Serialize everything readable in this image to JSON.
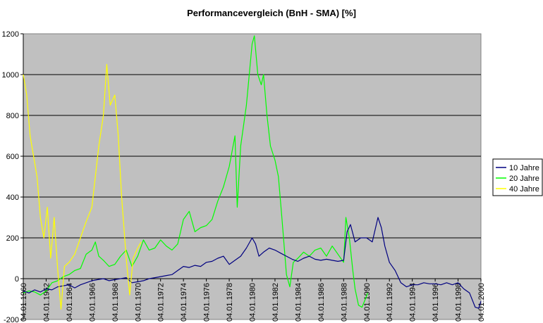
{
  "chart_data": {
    "type": "line",
    "title": "Performancevergleich (BnH - SMA) [%]",
    "xlabel": "",
    "ylabel": "",
    "ylim": [
      -200,
      1200
    ],
    "y_ticks": [
      -200,
      0,
      200,
      400,
      600,
      800,
      1000,
      1200
    ],
    "x_range": [
      1960.0,
      2000.0
    ],
    "x_ticks": [
      {
        "year": 1960,
        "label": "04.01.1960"
      },
      {
        "year": 1962,
        "label": "04.01.1962"
      },
      {
        "year": 1964,
        "label": "04.01.1964"
      },
      {
        "year": 1966,
        "label": "04.01.1966"
      },
      {
        "year": 1968,
        "label": "04.01.1968"
      },
      {
        "year": 1970,
        "label": "04.01.1970"
      },
      {
        "year": 1972,
        "label": "04.01.1972"
      },
      {
        "year": 1974,
        "label": "04.01.1974"
      },
      {
        "year": 1976,
        "label": "04.01.1976"
      },
      {
        "year": 1978,
        "label": "04.01.1978"
      },
      {
        "year": 1980,
        "label": "04.01.1980"
      },
      {
        "year": 1982,
        "label": "04.01.1982"
      },
      {
        "year": 1984,
        "label": "04.01.1984"
      },
      {
        "year": 1986,
        "label": "04.01.1986"
      },
      {
        "year": 1988,
        "label": "04.01.1988"
      },
      {
        "year": 1990,
        "label": "04.01.1990"
      },
      {
        "year": 1992,
        "label": "04.01.1992"
      },
      {
        "year": 1994,
        "label": "04.01.1994"
      },
      {
        "year": 1996,
        "label": "04.01.1996"
      },
      {
        "year": 1998,
        "label": "04.01.1998"
      },
      {
        "year": 2000,
        "label": "04.01.2000"
      }
    ],
    "grid": "horizontal",
    "plot_background": "#c0c0c0",
    "legend_position": "right",
    "series": [
      {
        "name": "10 Jahre",
        "color": "#000080",
        "points": [
          [
            1960.0,
            -60
          ],
          [
            1960.5,
            -70
          ],
          [
            1961.0,
            -55
          ],
          [
            1961.5,
            -65
          ],
          [
            1962.0,
            -50
          ],
          [
            1962.5,
            -55
          ],
          [
            1963.0,
            -40
          ],
          [
            1963.5,
            -35
          ],
          [
            1964.0,
            -30
          ],
          [
            1964.5,
            -45
          ],
          [
            1965.0,
            -30
          ],
          [
            1965.5,
            -20
          ],
          [
            1966.0,
            -10
          ],
          [
            1966.5,
            -5
          ],
          [
            1967.0,
            0
          ],
          [
            1967.5,
            -10
          ],
          [
            1968.0,
            -5
          ],
          [
            1968.5,
            0
          ],
          [
            1969.0,
            5
          ],
          [
            1969.5,
            -20
          ],
          [
            1970.0,
            -15
          ],
          [
            1970.5,
            -10
          ],
          [
            1971.0,
            0
          ],
          [
            1971.5,
            5
          ],
          [
            1972.0,
            10
          ],
          [
            1972.5,
            15
          ],
          [
            1973.0,
            20
          ],
          [
            1973.5,
            40
          ],
          [
            1974.0,
            60
          ],
          [
            1974.5,
            55
          ],
          [
            1975.0,
            65
          ],
          [
            1975.5,
            60
          ],
          [
            1976.0,
            80
          ],
          [
            1976.5,
            85
          ],
          [
            1977.0,
            100
          ],
          [
            1977.5,
            110
          ],
          [
            1978.0,
            70
          ],
          [
            1978.5,
            90
          ],
          [
            1979.0,
            110
          ],
          [
            1979.5,
            150
          ],
          [
            1980.0,
            200
          ],
          [
            1980.3,
            170
          ],
          [
            1980.6,
            110
          ],
          [
            1981.0,
            130
          ],
          [
            1981.5,
            150
          ],
          [
            1982.0,
            140
          ],
          [
            1982.5,
            125
          ],
          [
            1983.0,
            110
          ],
          [
            1983.5,
            95
          ],
          [
            1984.0,
            85
          ],
          [
            1984.5,
            100
          ],
          [
            1985.0,
            110
          ],
          [
            1985.5,
            95
          ],
          [
            1986.0,
            90
          ],
          [
            1986.5,
            95
          ],
          [
            1987.0,
            90
          ],
          [
            1987.5,
            85
          ],
          [
            1988.0,
            90
          ],
          [
            1988.3,
            230
          ],
          [
            1988.6,
            265
          ],
          [
            1989.0,
            180
          ],
          [
            1989.5,
            200
          ],
          [
            1990.0,
            200
          ],
          [
            1990.5,
            180
          ],
          [
            1991.0,
            300
          ],
          [
            1991.3,
            250
          ],
          [
            1991.6,
            160
          ],
          [
            1992.0,
            80
          ],
          [
            1992.5,
            40
          ],
          [
            1993.0,
            -20
          ],
          [
            1993.5,
            -40
          ],
          [
            1994.0,
            -30
          ],
          [
            1994.5,
            -30
          ],
          [
            1995.0,
            -20
          ],
          [
            1995.5,
            -25
          ],
          [
            1996.0,
            -25
          ],
          [
            1996.5,
            -30
          ],
          [
            1997.0,
            -20
          ],
          [
            1997.5,
            -30
          ],
          [
            1998.0,
            -20
          ],
          [
            1998.5,
            -50
          ],
          [
            1999.0,
            -70
          ],
          [
            1999.5,
            -140
          ],
          [
            1999.8,
            -145
          ],
          [
            2000.0,
            -110
          ]
        ]
      },
      {
        "name": "20 Jahre",
        "color": "#00ff00",
        "points": [
          [
            1960.0,
            -70
          ],
          [
            1960.5,
            -60
          ],
          [
            1961.0,
            -65
          ],
          [
            1961.5,
            -80
          ],
          [
            1962.0,
            -60
          ],
          [
            1962.5,
            -20
          ],
          [
            1963.0,
            -10
          ],
          [
            1963.5,
            10
          ],
          [
            1964.0,
            20
          ],
          [
            1964.5,
            40
          ],
          [
            1965.0,
            50
          ],
          [
            1965.5,
            120
          ],
          [
            1966.0,
            140
          ],
          [
            1966.3,
            180
          ],
          [
            1966.6,
            110
          ],
          [
            1967.0,
            90
          ],
          [
            1967.5,
            60
          ],
          [
            1968.0,
            70
          ],
          [
            1968.5,
            110
          ],
          [
            1969.0,
            140
          ],
          [
            1969.5,
            60
          ],
          [
            1970.0,
            110
          ],
          [
            1970.5,
            190
          ],
          [
            1971.0,
            140
          ],
          [
            1971.5,
            150
          ],
          [
            1972.0,
            190
          ],
          [
            1972.5,
            160
          ],
          [
            1973.0,
            140
          ],
          [
            1973.5,
            170
          ],
          [
            1974.0,
            290
          ],
          [
            1974.5,
            330
          ],
          [
            1975.0,
            230
          ],
          [
            1975.5,
            250
          ],
          [
            1976.0,
            260
          ],
          [
            1976.5,
            290
          ],
          [
            1977.0,
            380
          ],
          [
            1977.5,
            450
          ],
          [
            1978.0,
            550
          ],
          [
            1978.5,
            700
          ],
          [
            1978.7,
            350
          ],
          [
            1979.0,
            650
          ],
          [
            1979.5,
            850
          ],
          [
            1980.0,
            1150
          ],
          [
            1980.2,
            1190
          ],
          [
            1980.5,
            1000
          ],
          [
            1980.8,
            950
          ],
          [
            1981.0,
            1000
          ],
          [
            1981.3,
            800
          ],
          [
            1981.6,
            650
          ],
          [
            1982.0,
            580
          ],
          [
            1982.3,
            500
          ],
          [
            1982.6,
            300
          ],
          [
            1983.0,
            20
          ],
          [
            1983.3,
            -40
          ],
          [
            1983.6,
            80
          ],
          [
            1984.0,
            100
          ],
          [
            1984.5,
            130
          ],
          [
            1985.0,
            110
          ],
          [
            1985.5,
            140
          ],
          [
            1986.0,
            150
          ],
          [
            1986.5,
            110
          ],
          [
            1987.0,
            160
          ],
          [
            1987.5,
            120
          ],
          [
            1988.0,
            80
          ],
          [
            1988.2,
            300
          ],
          [
            1988.5,
            200
          ],
          [
            1988.8,
            40
          ],
          [
            1989.0,
            -50
          ],
          [
            1989.3,
            -130
          ],
          [
            1989.6,
            -140
          ],
          [
            1989.9,
            -100
          ],
          [
            1990.1,
            -70
          ]
        ]
      },
      {
        "name": "40 Jahre",
        "color": "#ffff00",
        "points": [
          [
            1960.0,
            1000
          ],
          [
            1960.3,
            900
          ],
          [
            1960.6,
            700
          ],
          [
            1960.9,
            600
          ],
          [
            1961.2,
            500
          ],
          [
            1961.5,
            300
          ],
          [
            1961.8,
            200
          ],
          [
            1962.1,
            350
          ],
          [
            1962.4,
            100
          ],
          [
            1962.7,
            300
          ],
          [
            1963.0,
            50
          ],
          [
            1963.3,
            -150
          ],
          [
            1963.6,
            60
          ],
          [
            1964.0,
            80
          ],
          [
            1964.5,
            120
          ],
          [
            1965.0,
            200
          ],
          [
            1965.5,
            280
          ],
          [
            1966.0,
            350
          ],
          [
            1966.3,
            500
          ],
          [
            1966.6,
            650
          ],
          [
            1967.0,
            800
          ],
          [
            1967.3,
            1050
          ],
          [
            1967.6,
            850
          ],
          [
            1968.0,
            900
          ],
          [
            1968.3,
            700
          ],
          [
            1968.6,
            400
          ],
          [
            1969.0,
            100
          ],
          [
            1969.3,
            -80
          ],
          [
            1969.6,
            100
          ],
          [
            1970.0,
            150
          ],
          [
            1970.3,
            180
          ]
        ]
      }
    ]
  }
}
